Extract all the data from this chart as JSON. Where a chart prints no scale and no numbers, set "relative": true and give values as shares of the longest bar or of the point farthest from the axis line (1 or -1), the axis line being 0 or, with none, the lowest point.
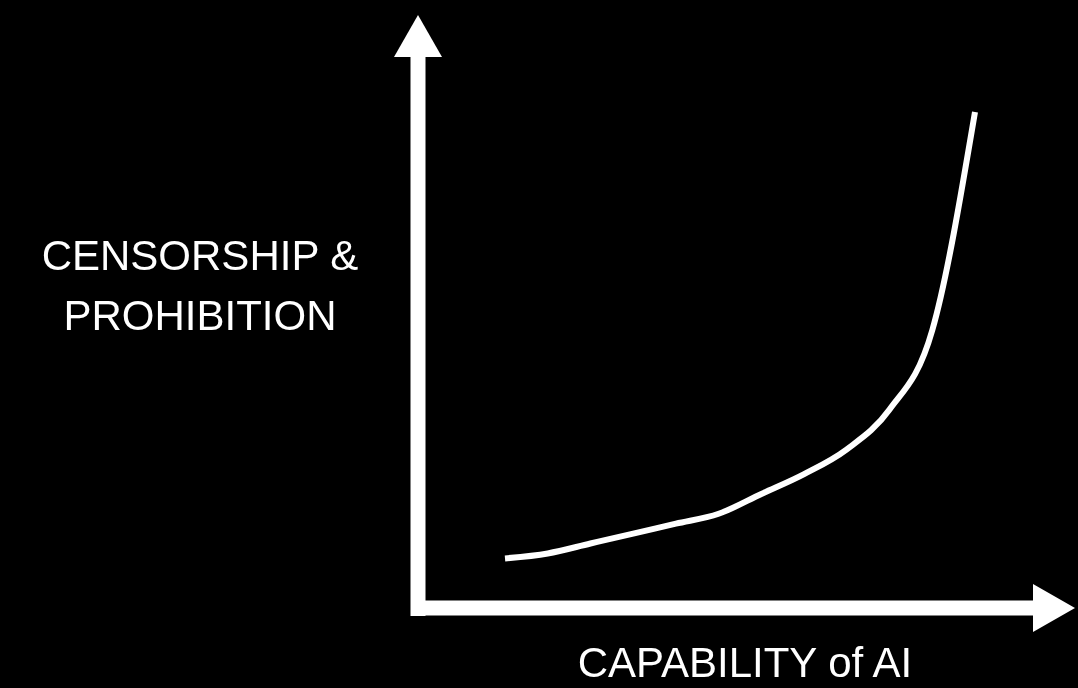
{
  "chart_data": {
    "type": "line",
    "relative": true,
    "xlabel": "CAPABILITY of AI",
    "ylabel": "CENSORSHIP & PROHIBITION",
    "categories": [
      null,
      null,
      null,
      null,
      null,
      null,
      null,
      null,
      null,
      null,
      null,
      null
    ],
    "series": [
      {
        "color": "#ffffff",
        "values": [
          0.1,
          0.11,
          0.13,
          0.15,
          0.17,
          0.19,
          0.23,
          0.27,
          0.32,
          0.4,
          0.56,
          1
        ]
      }
    ]
  }
}
